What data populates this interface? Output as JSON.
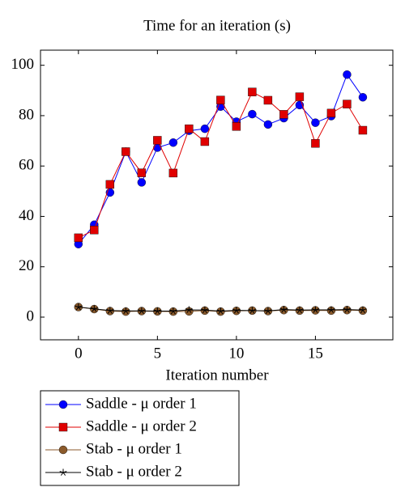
{
  "chart_data": {
    "type": "line",
    "title": "Time for an iteration (s)",
    "x_label": "Iteration number",
    "x": [
      0,
      1,
      2,
      3,
      4,
      5,
      6,
      7,
      8,
      9,
      10,
      11,
      12,
      13,
      14,
      15,
      16,
      17,
      18
    ],
    "series": [
      {
        "name": "Saddle - μ order 1",
        "color": "#0000ff",
        "marker": "circle",
        "values": [
          29,
          36.7,
          49.5,
          65.7,
          53.5,
          67.3,
          69.3,
          74,
          74.8,
          83.6,
          77.6,
          80.6,
          76.5,
          79,
          84.2,
          77.2,
          79.8,
          96.3,
          87.3
        ]
      },
      {
        "name": "Saddle - μ order 2",
        "color": "#e00000",
        "marker": "square",
        "values": [
          31.5,
          34.6,
          52.7,
          65.7,
          57.3,
          70.2,
          57.2,
          74.8,
          69.7,
          86.2,
          75.7,
          89.4,
          86.1,
          80.5,
          87.5,
          69,
          81,
          84.6,
          74.2
        ]
      },
      {
        "name": "Stab - μ order 1",
        "color": "#8b5a2b",
        "marker": "circle",
        "values": [
          4,
          3.2,
          2.4,
          2.2,
          2.4,
          2.3,
          2.2,
          2.3,
          2.6,
          2.2,
          2.5,
          2.6,
          2.4,
          2.8,
          2.6,
          2.7,
          2.6,
          2.8,
          2.6
        ]
      },
      {
        "name": "Stab - μ order 2",
        "color": "#000000",
        "marker": "star",
        "values": [
          4,
          3.3,
          2.6,
          2.5,
          2.5,
          2.4,
          2.4,
          2.9,
          2.8,
          2.4,
          2.7,
          2.6,
          2.5,
          3.0,
          2.8,
          2.9,
          2.9,
          3.0,
          2.8
        ]
      }
    ],
    "xlim": [
      -2.4,
      19.9
    ],
    "ylim": [
      -9,
      106
    ],
    "xticks": [
      0,
      5,
      10,
      15
    ],
    "yticks": [
      0,
      20,
      40,
      60,
      80,
      100
    ]
  }
}
